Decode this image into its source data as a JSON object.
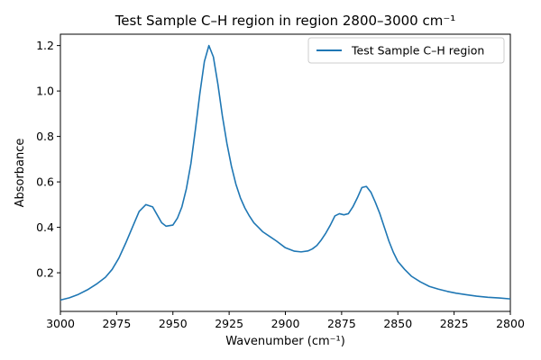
{
  "chart_data": {
    "type": "line",
    "title": "Test Sample C–H region in region 2800–3000 cm⁻¹",
    "xlabel": "Wavenumber (cm⁻¹)",
    "ylabel": "Absorbance",
    "xlim": [
      3000,
      2800
    ],
    "ylim": [
      0.03,
      1.25
    ],
    "x_inverted": true,
    "xticks": [
      3000,
      2975,
      2950,
      2925,
      2900,
      2875,
      2850,
      2825,
      2800
    ],
    "yticks": [
      0.2,
      0.4,
      0.6,
      0.8,
      1.0,
      1.2
    ],
    "ytick_labels": [
      "0.2",
      "0.4",
      "0.6",
      "0.8",
      "1.0",
      "1.2"
    ],
    "grid": false,
    "legend_position": "top-right",
    "series": [
      {
        "name": "Test Sample C–H region",
        "color": "#1f77b4",
        "x": [
          3000,
          2996,
          2992,
          2988,
          2984,
          2980,
          2977,
          2974,
          2971,
          2968,
          2965,
          2962,
          2959,
          2957,
          2955,
          2953,
          2950,
          2948,
          2946,
          2944,
          2942,
          2940,
          2938,
          2936,
          2934,
          2932,
          2930,
          2928,
          2926,
          2924,
          2922,
          2920,
          2918,
          2916,
          2914,
          2912,
          2910,
          2907,
          2904,
          2900,
          2896,
          2893,
          2890,
          2888,
          2886,
          2884,
          2882,
          2880,
          2878,
          2876,
          2874,
          2872,
          2870,
          2868,
          2866,
          2864,
          2862,
          2860,
          2858,
          2856,
          2854,
          2852,
          2850,
          2847,
          2844,
          2840,
          2836,
          2832,
          2828,
          2824,
          2820,
          2815,
          2810,
          2805,
          2800
        ],
        "y": [
          0.08,
          0.09,
          0.105,
          0.125,
          0.15,
          0.18,
          0.215,
          0.265,
          0.33,
          0.4,
          0.47,
          0.5,
          0.49,
          0.455,
          0.42,
          0.405,
          0.41,
          0.44,
          0.49,
          0.57,
          0.68,
          0.83,
          0.99,
          1.13,
          1.2,
          1.15,
          1.03,
          0.89,
          0.77,
          0.67,
          0.59,
          0.53,
          0.485,
          0.45,
          0.42,
          0.4,
          0.38,
          0.36,
          0.34,
          0.31,
          0.295,
          0.292,
          0.296,
          0.305,
          0.32,
          0.345,
          0.375,
          0.41,
          0.45,
          0.46,
          0.455,
          0.46,
          0.49,
          0.53,
          0.575,
          0.58,
          0.555,
          0.51,
          0.46,
          0.4,
          0.34,
          0.29,
          0.25,
          0.215,
          0.185,
          0.16,
          0.14,
          0.128,
          0.118,
          0.11,
          0.104,
          0.097,
          0.092,
          0.089,
          0.085
        ]
      }
    ]
  }
}
